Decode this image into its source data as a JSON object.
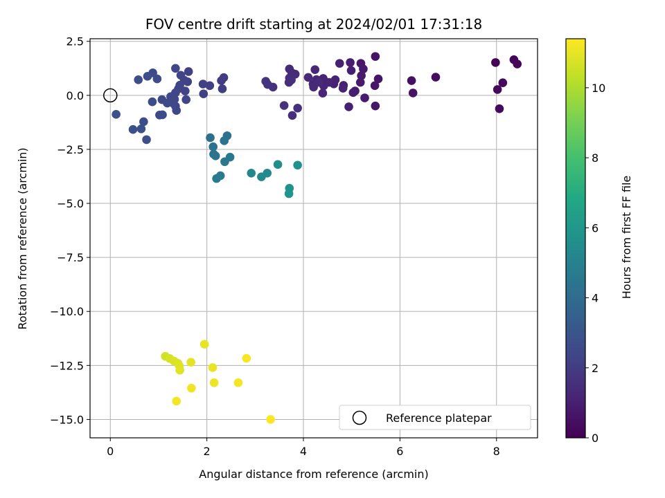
{
  "chart_data": {
    "type": "scatter",
    "title": "FOV centre drift starting at 2024/02/01 17:31:18",
    "xlabel": "Angular distance from reference (arcmin)",
    "ylabel": "Rotation from reference (arcmin)",
    "xlim": [
      -0.42,
      8.85
    ],
    "ylim": [
      -15.85,
      2.62
    ],
    "xticks": [
      0,
      2,
      4,
      6,
      8
    ],
    "xtick_labels": [
      "0",
      "2",
      "4",
      "6",
      "8"
    ],
    "yticks": [
      2.5,
      0.0,
      -2.5,
      -5.0,
      -7.5,
      -10.0,
      -12.5,
      -15.0
    ],
    "ytick_labels": [
      "2.5",
      "0.0",
      "−2.5",
      "−5.0",
      "−7.5",
      "−10.0",
      "−12.5",
      "−15.0"
    ],
    "grid": true,
    "colormap": "viridis",
    "colorbar": {
      "label": "Hours from first FF file",
      "range": [
        0,
        11.4
      ],
      "ticks": [
        0,
        2,
        4,
        6,
        8,
        10
      ],
      "tick_labels": [
        "0",
        "2",
        "4",
        "6",
        "8",
        "10"
      ],
      "colors": [
        "#440154",
        "#482475",
        "#414487",
        "#355f8d",
        "#2a788e",
        "#21918c",
        "#22a884",
        "#44bf70",
        "#7ad151",
        "#bddf26",
        "#fde725"
      ]
    },
    "legend": {
      "location": "lower-right",
      "entries": [
        {
          "label": "Reference platepar",
          "marker": "open-circle",
          "color": "#000000"
        }
      ]
    },
    "reference_point": {
      "x": 0,
      "y": 0
    },
    "points": [
      {
        "x": 7.98,
        "y": 1.52,
        "c": 0.05
      },
      {
        "x": 8.36,
        "y": 1.65,
        "c": 0.1
      },
      {
        "x": 8.43,
        "y": 1.45,
        "c": 0.15
      },
      {
        "x": 8.13,
        "y": 0.58,
        "c": 0.2
      },
      {
        "x": 8.02,
        "y": 0.27,
        "c": 0.25
      },
      {
        "x": 8.06,
        "y": -0.62,
        "c": 0.3
      },
      {
        "x": 6.74,
        "y": 0.84,
        "c": 0.4
      },
      {
        "x": 6.24,
        "y": 0.68,
        "c": 0.5
      },
      {
        "x": 6.27,
        "y": 0.11,
        "c": 0.55
      },
      {
        "x": 5.49,
        "y": 1.8,
        "c": 0.6
      },
      {
        "x": 5.55,
        "y": 0.76,
        "c": 0.65
      },
      {
        "x": 5.48,
        "y": 0.45,
        "c": 0.7
      },
      {
        "x": 5.49,
        "y": -0.49,
        "c": 0.72
      },
      {
        "x": 5.19,
        "y": 1.48,
        "c": 0.75
      },
      {
        "x": 5.24,
        "y": 1.22,
        "c": 0.78
      },
      {
        "x": 5.2,
        "y": 0.91,
        "c": 0.8
      },
      {
        "x": 5.18,
        "y": 0.6,
        "c": 0.82
      },
      {
        "x": 5.27,
        "y": -0.12,
        "c": 0.85
      },
      {
        "x": 5.07,
        "y": 0.2,
        "c": 0.87
      },
      {
        "x": 5.03,
        "y": 0.13,
        "c": 0.9
      },
      {
        "x": 4.97,
        "y": 1.52,
        "c": 0.95
      },
      {
        "x": 4.99,
        "y": 1.15,
        "c": 0.97
      },
      {
        "x": 4.94,
        "y": -0.53,
        "c": 1.0
      },
      {
        "x": 4.75,
        "y": 1.48,
        "c": 1.02
      },
      {
        "x": 4.83,
        "y": 0.46,
        "c": 1.05
      },
      {
        "x": 4.82,
        "y": 0.33,
        "c": 1.08
      },
      {
        "x": 4.66,
        "y": 0.72,
        "c": 1.1
      },
      {
        "x": 4.63,
        "y": 0.53,
        "c": 1.12
      },
      {
        "x": 4.41,
        "y": 0.78,
        "c": 1.15
      },
      {
        "x": 4.42,
        "y": 0.44,
        "c": 1.18
      },
      {
        "x": 4.4,
        "y": 0.1,
        "c": 1.2
      },
      {
        "x": 4.53,
        "y": 0.6,
        "c": 1.22
      },
      {
        "x": 4.24,
        "y": 1.19,
        "c": 1.25
      },
      {
        "x": 4.27,
        "y": 0.73,
        "c": 1.28
      },
      {
        "x": 4.2,
        "y": 0.52,
        "c": 1.3
      },
      {
        "x": 4.21,
        "y": 0.38,
        "c": 1.32
      },
      {
        "x": 4.1,
        "y": 0.83,
        "c": 1.35
      },
      {
        "x": 4.31,
        "y": 0.6,
        "c": 1.38
      },
      {
        "x": 3.71,
        "y": 1.22,
        "c": 1.4
      },
      {
        "x": 3.76,
        "y": 1.04,
        "c": 1.42
      },
      {
        "x": 3.83,
        "y": 0.98,
        "c": 1.45
      },
      {
        "x": 3.71,
        "y": 0.8,
        "c": 1.48
      },
      {
        "x": 3.7,
        "y": 0.6,
        "c": 1.5
      },
      {
        "x": 3.75,
        "y": 0.71,
        "c": 1.52
      },
      {
        "x": 3.88,
        "y": -0.59,
        "c": 1.55
      },
      {
        "x": 3.77,
        "y": -0.93,
        "c": 1.58
      },
      {
        "x": 3.6,
        "y": -0.47,
        "c": 1.6
      },
      {
        "x": 3.37,
        "y": 0.38,
        "c": 1.65
      },
      {
        "x": 3.22,
        "y": 0.65,
        "c": 1.7
      },
      {
        "x": 3.26,
        "y": 0.5,
        "c": 1.72
      },
      {
        "x": 2.35,
        "y": 0.82,
        "c": 2.0
      },
      {
        "x": 2.3,
        "y": 0.68,
        "c": 2.02
      },
      {
        "x": 2.32,
        "y": 0.3,
        "c": 2.05
      },
      {
        "x": 2.06,
        "y": 0.45,
        "c": 2.1
      },
      {
        "x": 1.92,
        "y": 0.52,
        "c": 2.12
      },
      {
        "x": 1.93,
        "y": 0.07,
        "c": 2.15
      },
      {
        "x": 1.62,
        "y": 1.1,
        "c": 2.2
      },
      {
        "x": 1.6,
        "y": 0.63,
        "c": 2.22
      },
      {
        "x": 1.53,
        "y": 0.7,
        "c": 2.24
      },
      {
        "x": 1.55,
        "y": 0.2,
        "c": 2.26
      },
      {
        "x": 1.57,
        "y": -0.2,
        "c": 2.28
      },
      {
        "x": 1.46,
        "y": 0.93,
        "c": 2.3
      },
      {
        "x": 1.44,
        "y": 0.47,
        "c": 2.32
      },
      {
        "x": 1.41,
        "y": 0.3,
        "c": 2.34
      },
      {
        "x": 1.35,
        "y": 1.25,
        "c": 2.36
      },
      {
        "x": 1.35,
        "y": 0.12,
        "c": 2.38
      },
      {
        "x": 1.33,
        "y": -0.18,
        "c": 2.4
      },
      {
        "x": 1.35,
        "y": -0.5,
        "c": 2.42
      },
      {
        "x": 1.37,
        "y": -0.7,
        "c": 2.44
      },
      {
        "x": 1.29,
        "y": -0.35,
        "c": 2.46
      },
      {
        "x": 1.25,
        "y": -0.06,
        "c": 2.48
      },
      {
        "x": 1.18,
        "y": -0.36,
        "c": 2.5
      },
      {
        "x": 1.07,
        "y": -0.2,
        "c": 2.52
      },
      {
        "x": 1.02,
        "y": -0.91,
        "c": 2.55
      },
      {
        "x": 1.08,
        "y": -0.9,
        "c": 2.57
      },
      {
        "x": 0.97,
        "y": 0.76,
        "c": 2.6
      },
      {
        "x": 0.88,
        "y": 1.04,
        "c": 2.62
      },
      {
        "x": 0.77,
        "y": 0.88,
        "c": 2.64
      },
      {
        "x": 0.87,
        "y": -0.3,
        "c": 2.66
      },
      {
        "x": 0.58,
        "y": 0.72,
        "c": 2.7
      },
      {
        "x": 0.69,
        "y": -1.22,
        "c": 2.72
      },
      {
        "x": 0.64,
        "y": -1.55,
        "c": 2.74
      },
      {
        "x": 0.47,
        "y": -1.58,
        "c": 2.76
      },
      {
        "x": 0.75,
        "y": -2.05,
        "c": 2.78
      },
      {
        "x": 0.12,
        "y": -0.88,
        "c": 2.8
      },
      {
        "x": 2.42,
        "y": -1.87,
        "c": 4.3
      },
      {
        "x": 2.36,
        "y": -2.1,
        "c": 4.4
      },
      {
        "x": 2.07,
        "y": -1.96,
        "c": 4.2
      },
      {
        "x": 2.13,
        "y": -2.38,
        "c": 4.25
      },
      {
        "x": 2.14,
        "y": -2.72,
        "c": 4.35
      },
      {
        "x": 2.18,
        "y": -2.8,
        "c": 4.4
      },
      {
        "x": 2.48,
        "y": -2.86,
        "c": 4.55
      },
      {
        "x": 2.37,
        "y": -3.07,
        "c": 4.5
      },
      {
        "x": 2.28,
        "y": -3.72,
        "c": 4.6
      },
      {
        "x": 2.2,
        "y": -3.85,
        "c": 4.65
      },
      {
        "x": 2.92,
        "y": -3.6,
        "c": 5.2
      },
      {
        "x": 3.13,
        "y": -3.77,
        "c": 5.3
      },
      {
        "x": 3.25,
        "y": -3.6,
        "c": 5.35
      },
      {
        "x": 3.47,
        "y": -3.2,
        "c": 5.5
      },
      {
        "x": 3.88,
        "y": -3.23,
        "c": 5.7
      },
      {
        "x": 3.71,
        "y": -4.3,
        "c": 5.8
      },
      {
        "x": 3.7,
        "y": -4.55,
        "c": 5.85
      },
      {
        "x": 1.14,
        "y": -12.08,
        "c": 10.6
      },
      {
        "x": 1.23,
        "y": -12.18,
        "c": 10.7
      },
      {
        "x": 1.32,
        "y": -12.3,
        "c": 10.75
      },
      {
        "x": 1.4,
        "y": -12.4,
        "c": 10.8
      },
      {
        "x": 1.43,
        "y": -12.52,
        "c": 10.85
      },
      {
        "x": 1.44,
        "y": -12.72,
        "c": 10.9
      },
      {
        "x": 1.67,
        "y": -12.35,
        "c": 10.95
      },
      {
        "x": 1.95,
        "y": -11.52,
        "c": 11.0
      },
      {
        "x": 2.12,
        "y": -12.6,
        "c": 11.05
      },
      {
        "x": 2.15,
        "y": -13.3,
        "c": 11.1
      },
      {
        "x": 1.68,
        "y": -13.55,
        "c": 11.15
      },
      {
        "x": 1.37,
        "y": -14.15,
        "c": 11.2
      },
      {
        "x": 2.65,
        "y": -13.3,
        "c": 11.25
      },
      {
        "x": 2.82,
        "y": -12.17,
        "c": 11.3
      },
      {
        "x": 3.32,
        "y": -15.0,
        "c": 11.4
      }
    ]
  }
}
